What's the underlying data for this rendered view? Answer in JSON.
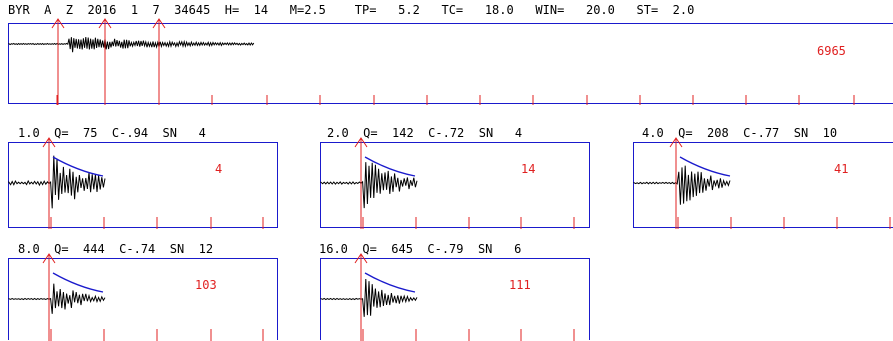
{
  "header": {
    "text": "BYR  A  Z  2016  1  7  34645  H=  14   M=2.5    TP=   5.2   TC=   18.0   WIN=   20.0   ST=  2.0"
  },
  "main_trace": {
    "amplitude": "6965"
  },
  "filter_panels": [
    {
      "label": "1.0  Q=  75  C-.94  SN   4",
      "amplitude": "4"
    },
    {
      "label": "2.0  Q=  142  C-.72  SN   4",
      "amplitude": "14"
    },
    {
      "label": "4.0  Q=  208  C-.77  SN  10",
      "amplitude": "41"
    },
    {
      "label": "8.0  Q=  444  C-.74  SN  12",
      "amplitude": "103"
    },
    {
      "label": "16.0  Q=  645  C-.79  SN   6",
      "amplitude": "111"
    }
  ],
  "colors": {
    "frame": "#1a1acc",
    "pick": "#e02020",
    "fit_curve": "#1a1acc",
    "trace": "#000000"
  }
}
